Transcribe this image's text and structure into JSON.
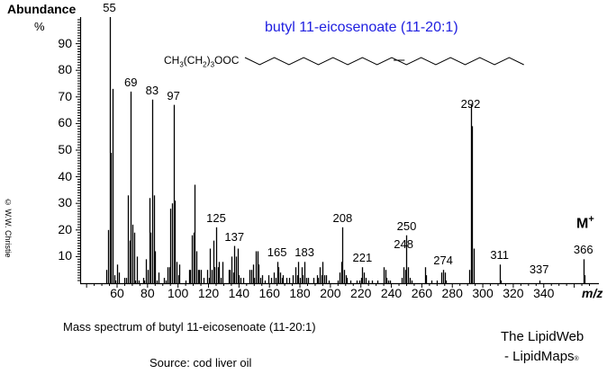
{
  "chart_data": {
    "type": "bar",
    "title": "butyl 11-eicosenoate  (11-20:1)",
    "structure_formula_prefix": "CH3(CH2)3OOC",
    "xlabel": "m/z",
    "ylabel": "Abundance %",
    "xlim": [
      37,
      372
    ],
    "ylim": [
      0,
      100
    ],
    "x_ticks": [
      60,
      80,
      100,
      120,
      140,
      160,
      180,
      200,
      220,
      240,
      260,
      280,
      300,
      320,
      340
    ],
    "y_ticks": [
      10,
      20,
      30,
      40,
      50,
      60,
      70,
      80,
      90
    ],
    "grid": false,
    "peak_labels": [
      55,
      69,
      83,
      97,
      125,
      137,
      165,
      183,
      208,
      221,
      248,
      250,
      274,
      292,
      311,
      337,
      366
    ],
    "molecular_ion_label": "M+",
    "peaks": [
      [
        53,
        5
      ],
      [
        54,
        20
      ],
      [
        55,
        100
      ],
      [
        56,
        49
      ],
      [
        57,
        73
      ],
      [
        58,
        3
      ],
      [
        59,
        1
      ],
      [
        60,
        7
      ],
      [
        61,
        4
      ],
      [
        65,
        2
      ],
      [
        66,
        2
      ],
      [
        67,
        33
      ],
      [
        68,
        16
      ],
      [
        69,
        72
      ],
      [
        70,
        22
      ],
      [
        71,
        19
      ],
      [
        72,
        1
      ],
      [
        73,
        10
      ],
      [
        74,
        1
      ],
      [
        77,
        2
      ],
      [
        78,
        1
      ],
      [
        79,
        9
      ],
      [
        80,
        5
      ],
      [
        81,
        32
      ],
      [
        82,
        19
      ],
      [
        83,
        69
      ],
      [
        84,
        33
      ],
      [
        85,
        12
      ],
      [
        86,
        1
      ],
      [
        87,
        4
      ],
      [
        91,
        2
      ],
      [
        92,
        1
      ],
      [
        93,
        6
      ],
      [
        94,
        6
      ],
      [
        95,
        28
      ],
      [
        96,
        30
      ],
      [
        97,
        67
      ],
      [
        98,
        31
      ],
      [
        99,
        8
      ],
      [
        100,
        3
      ],
      [
        101,
        7
      ],
      [
        105,
        1
      ],
      [
        107,
        5
      ],
      [
        108,
        5
      ],
      [
        109,
        18
      ],
      [
        110,
        19
      ],
      [
        111,
        37
      ],
      [
        112,
        12
      ],
      [
        113,
        5
      ],
      [
        114,
        5
      ],
      [
        115,
        5
      ],
      [
        117,
        2
      ],
      [
        119,
        5
      ],
      [
        120,
        2
      ],
      [
        121,
        13
      ],
      [
        122,
        5
      ],
      [
        123,
        16
      ],
      [
        124,
        6
      ],
      [
        125,
        21
      ],
      [
        126,
        6
      ],
      [
        127,
        8
      ],
      [
        128,
        2
      ],
      [
        129,
        8
      ],
      [
        133,
        5
      ],
      [
        134,
        5
      ],
      [
        135,
        10
      ],
      [
        136,
        4
      ],
      [
        137,
        14
      ],
      [
        138,
        10
      ],
      [
        139,
        13
      ],
      [
        140,
        3
      ],
      [
        141,
        2
      ],
      [
        143,
        2
      ],
      [
        147,
        5
      ],
      [
        148,
        5
      ],
      [
        149,
        7
      ],
      [
        150,
        2
      ],
      [
        151,
        12
      ],
      [
        152,
        12
      ],
      [
        153,
        7
      ],
      [
        154,
        2
      ],
      [
        155,
        3
      ],
      [
        157,
        1
      ],
      [
        159,
        3
      ],
      [
        161,
        2
      ],
      [
        163,
        4
      ],
      [
        164,
        2
      ],
      [
        165,
        8
      ],
      [
        166,
        6
      ],
      [
        167,
        4
      ],
      [
        168,
        2
      ],
      [
        169,
        3
      ],
      [
        171,
        2
      ],
      [
        173,
        2
      ],
      [
        175,
        3
      ],
      [
        177,
        6
      ],
      [
        178,
        3
      ],
      [
        179,
        8
      ],
      [
        180,
        2
      ],
      [
        181,
        6
      ],
      [
        182,
        3
      ],
      [
        183,
        8
      ],
      [
        184,
        2
      ],
      [
        185,
        2
      ],
      [
        189,
        2
      ],
      [
        191,
        3
      ],
      [
        192,
        2
      ],
      [
        193,
        6
      ],
      [
        194,
        3
      ],
      [
        195,
        8
      ],
      [
        196,
        3
      ],
      [
        197,
        3
      ],
      [
        199,
        1
      ],
      [
        205,
        1
      ],
      [
        206,
        4
      ],
      [
        207,
        8
      ],
      [
        208,
        21
      ],
      [
        209,
        5
      ],
      [
        210,
        3
      ],
      [
        211,
        2
      ],
      [
        213,
        1
      ],
      [
        217,
        1
      ],
      [
        219,
        1
      ],
      [
        220,
        2
      ],
      [
        221,
        6
      ],
      [
        222,
        4
      ],
      [
        223,
        2
      ],
      [
        225,
        1
      ],
      [
        227,
        1
      ],
      [
        231,
        1
      ],
      [
        235,
        6
      ],
      [
        236,
        5
      ],
      [
        237,
        2
      ],
      [
        238,
        1
      ],
      [
        239,
        1
      ],
      [
        247,
        2
      ],
      [
        248,
        6
      ],
      [
        249,
        5
      ],
      [
        250,
        18
      ],
      [
        251,
        6
      ],
      [
        252,
        2
      ],
      [
        253,
        1
      ],
      [
        262,
        6
      ],
      [
        263,
        3
      ],
      [
        266,
        1
      ],
      [
        270,
        1
      ],
      [
        273,
        4
      ],
      [
        274,
        5
      ],
      [
        275,
        4
      ],
      [
        276,
        1
      ],
      [
        291,
        5
      ],
      [
        292,
        67
      ],
      [
        293,
        59
      ],
      [
        294,
        13
      ],
      [
        311,
        7
      ],
      [
        312,
        1
      ],
      [
        337,
        1
      ],
      [
        366,
        9
      ],
      [
        367,
        3
      ]
    ]
  },
  "axes": {
    "ylabel_line1": "Abundance",
    "ylabel_line2": "%",
    "y_tick_labels": [
      "90",
      "80",
      "70",
      "60",
      "50",
      "40",
      "30",
      "20",
      "10"
    ],
    "x_tick_labels": [
      "60",
      "80",
      "100",
      "120",
      "140",
      "160",
      "180",
      "200",
      "220",
      "240",
      "260",
      "280",
      "300",
      "320",
      "340"
    ],
    "x_unit": "m/z"
  },
  "header": {
    "title": "butyl 11-eicosenoate  (11-20:1)",
    "formula_ch": "CH",
    "formula_3": "3",
    "formula_mid": "(CH",
    "formula_2": "2",
    "formula_close": ")",
    "formula_3b": "3",
    "formula_end": "OOC"
  },
  "annotations": {
    "molecular_ion": "M",
    "molecular_ion_sup": "+",
    "copyright": "© W.W. Christie"
  },
  "footer": {
    "caption": "Mass spectrum of butyl 11-eicosenoate (11-20:1)",
    "source": "Source: cod liver oil",
    "brand_line1": "The LipidWeb",
    "brand_line2": "- LipidMaps",
    "brand_reg": "®"
  },
  "colors": {
    "title": "#2020e0",
    "bars": "#000000"
  }
}
